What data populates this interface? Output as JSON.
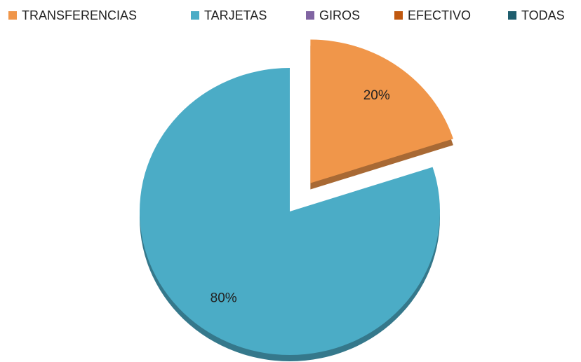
{
  "chart_data": {
    "type": "pie",
    "categories": [
      "TRANSFERENCIAS",
      "TARJETAS",
      "GIROS",
      "EFECTIVO",
      "TODAS"
    ],
    "values": [
      20,
      80,
      0,
      0,
      0
    ],
    "value_labels": [
      "20%",
      "80%",
      null,
      null,
      null
    ],
    "colors": [
      "#f0964a",
      "#4bacc6",
      "#8064a2",
      "#c0580f",
      "#1f5e6e"
    ],
    "exploded": [
      true,
      false,
      false,
      false,
      false
    ],
    "legend": "top"
  }
}
